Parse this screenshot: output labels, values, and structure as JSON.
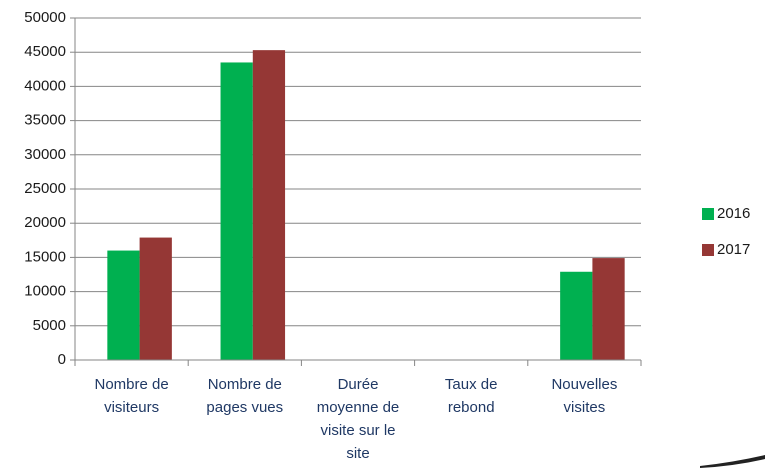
{
  "chart_data": {
    "type": "bar",
    "categories": [
      "Nombre de\nvisiteurs",
      "Nombre de\npages vues",
      "Durée\nmoyenne de\nvisite sur le\nsite",
      "Taux de\nrebond",
      "Nouvelles\nvisites"
    ],
    "series": [
      {
        "name": "2016",
        "color": "#00b050",
        "values": [
          16000,
          43500,
          0,
          0,
          12900
        ]
      },
      {
        "name": "2017",
        "color": "#953735",
        "values": [
          17900,
          45300,
          0,
          0,
          14900
        ]
      }
    ],
    "ylim": [
      0,
      50000
    ],
    "yticks": [
      0,
      5000,
      10000,
      15000,
      20000,
      25000,
      30000,
      35000,
      40000,
      45000,
      50000
    ],
    "grid": true,
    "legend": "right"
  }
}
